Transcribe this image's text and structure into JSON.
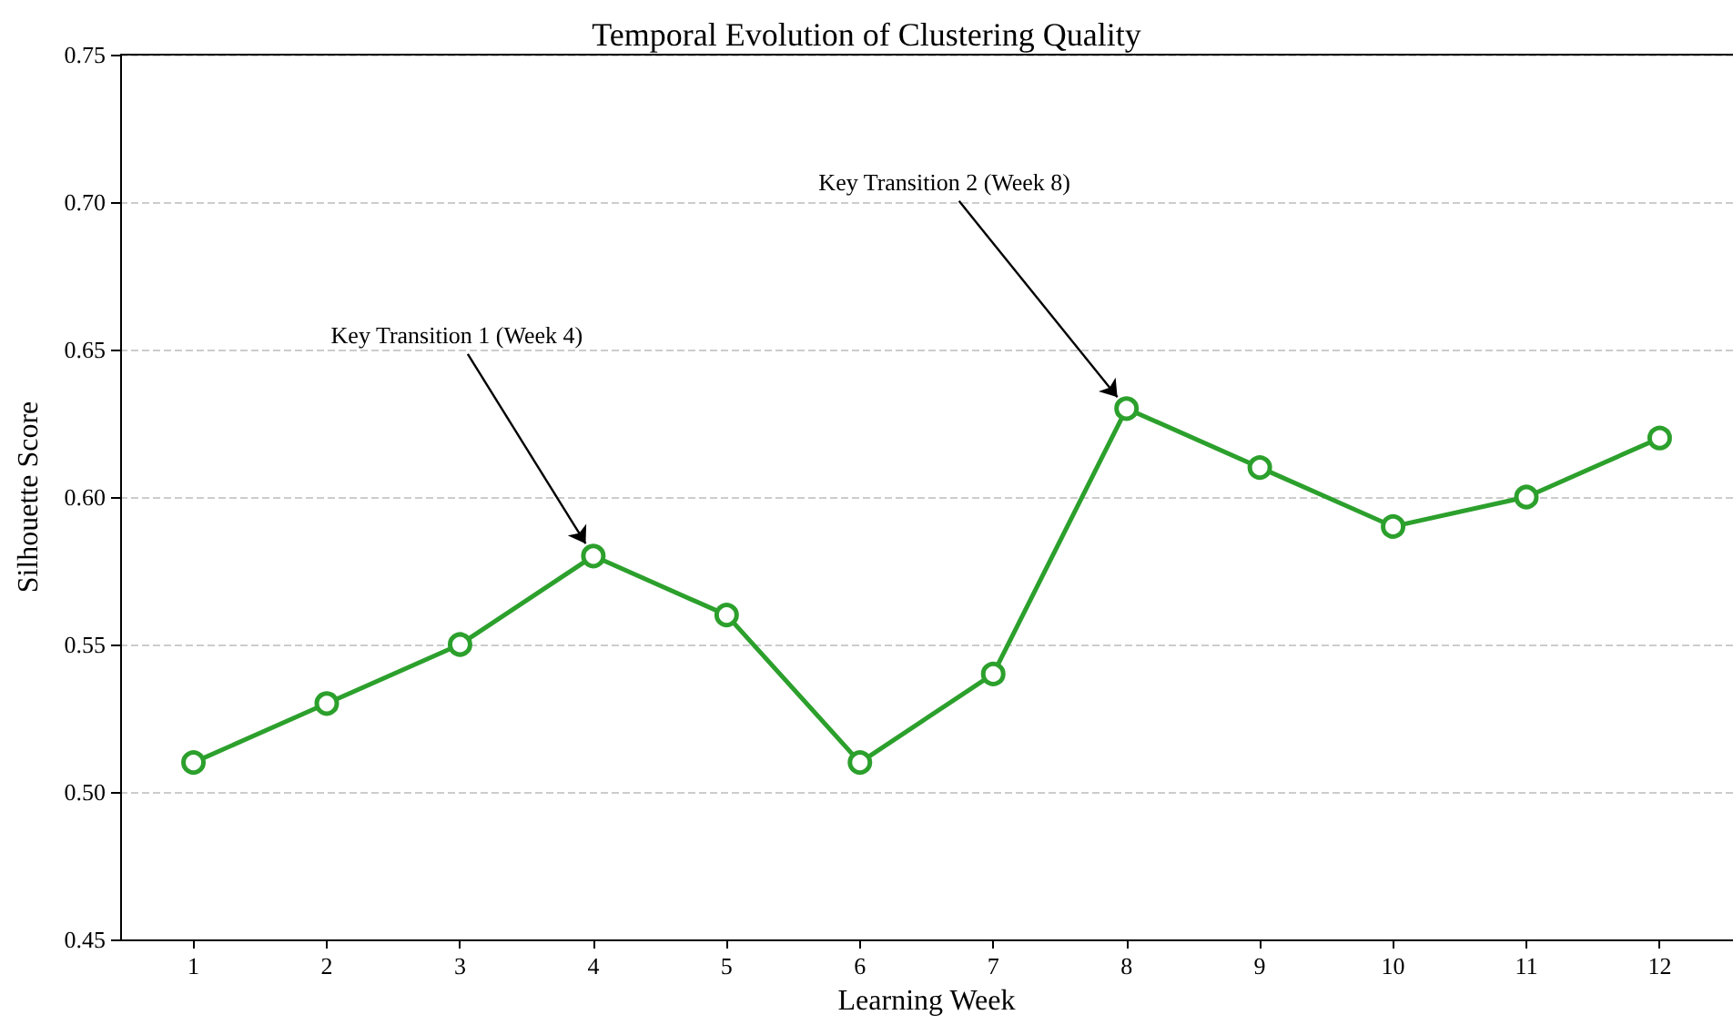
{
  "chart_data": {
    "type": "line",
    "title": "Temporal Evolution of Clustering Quality",
    "xlabel": "Learning Week",
    "ylabel": "Silhouette Score",
    "x": [
      1,
      2,
      3,
      4,
      5,
      6,
      7,
      8,
      9,
      10,
      11,
      12
    ],
    "series": [
      {
        "color": "#2ca02c",
        "values": [
          0.51,
          0.53,
          0.55,
          0.58,
          0.56,
          0.51,
          0.54,
          0.63,
          0.61,
          0.59,
          0.6,
          0.62
        ]
      }
    ],
    "xlim": [
      0.45,
      12.55
    ],
    "xticks": [
      1,
      2,
      3,
      4,
      5,
      6,
      7,
      8,
      9,
      10,
      11,
      12
    ],
    "ylim": [
      0.45,
      0.75
    ],
    "yticks": [
      {
        "value": 0.45,
        "label": "0.45"
      },
      {
        "value": 0.5,
        "label": "0.50"
      },
      {
        "value": 0.55,
        "label": "0.55"
      },
      {
        "value": 0.6,
        "label": "0.60"
      },
      {
        "value": 0.65,
        "label": "0.65"
      },
      {
        "value": 0.7,
        "label": "0.70"
      },
      {
        "value": 0.75,
        "label": "0.75"
      }
    ],
    "grid": "y",
    "marker": "circle",
    "line_style": "solid",
    "annotations": [
      {
        "text": "Key Transition 1 (Week 4)",
        "x": 4,
        "y": 0.58
      },
      {
        "text": "Key Transition 2 (Week 8)",
        "x": 8,
        "y": 0.63
      }
    ]
  }
}
